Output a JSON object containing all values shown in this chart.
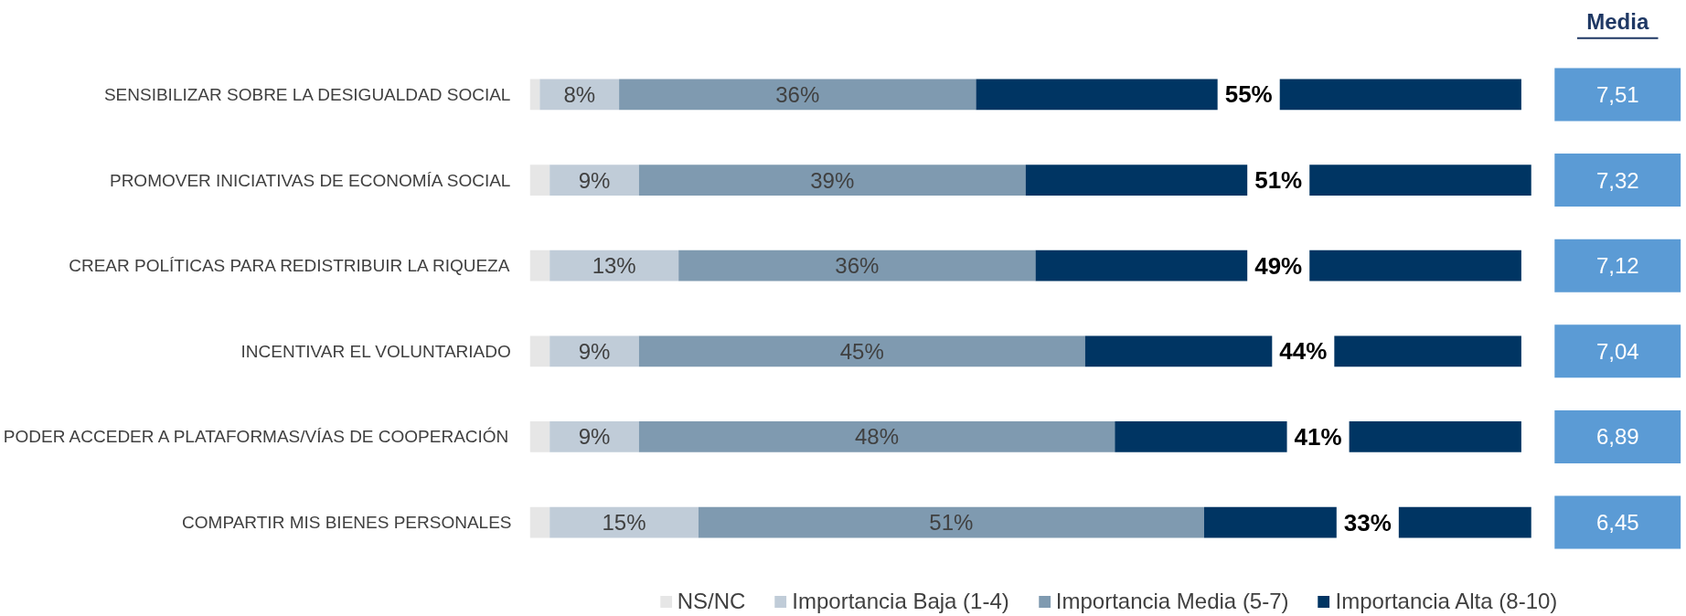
{
  "chart_data": {
    "type": "bar",
    "orientation": "horizontal",
    "stacked": true,
    "categories": [
      "SENSIBILIZAR SOBRE LA DESIGUALDAD SOCIAL",
      "PROMOVER INICIATIVAS DE ECONOMÍA SOCIAL",
      "CREAR POLÍTICAS PARA REDISTRIBUIR LA RIQUEZA",
      "INCENTIVAR EL VOLUNTARIADO",
      "PODER ACCEDER A PLATAFORMAS/VÍAS DE COOPERACIÓN",
      "COMPARTIR MIS BIENES PERSONALES"
    ],
    "series": [
      {
        "name": "NS/NC",
        "color": "#e6e6e6",
        "values": [
          1,
          2,
          2,
          2,
          2,
          2
        ],
        "value_labels": [
          null,
          null,
          null,
          null,
          null,
          null
        ]
      },
      {
        "name": "Importancia Baja (1-4)",
        "color": "#c0ccd8",
        "values": [
          8,
          9,
          13,
          9,
          9,
          15
        ],
        "value_labels": [
          "8%",
          "9%",
          "13%",
          "9%",
          "9%",
          "15%"
        ]
      },
      {
        "name": "Importancia Media (5-7)",
        "color": "#7f9ab0",
        "values": [
          36,
          39,
          36,
          45,
          48,
          51
        ],
        "value_labels": [
          "36%",
          "39%",
          "36%",
          "45%",
          "48%",
          "51%"
        ]
      },
      {
        "name": "Importancia Alta (8-10)",
        "color": "#003563",
        "values": [
          55,
          51,
          49,
          44,
          41,
          33
        ],
        "value_labels": [
          "55%",
          "51%",
          "49%",
          "44%",
          "41%",
          "33%"
        ]
      }
    ],
    "annotations": [
      "Media",
      "7,51",
      "7,32",
      "7,12",
      "7,04",
      "6,89",
      "6,45"
    ],
    "legend": "bottom"
  }
}
